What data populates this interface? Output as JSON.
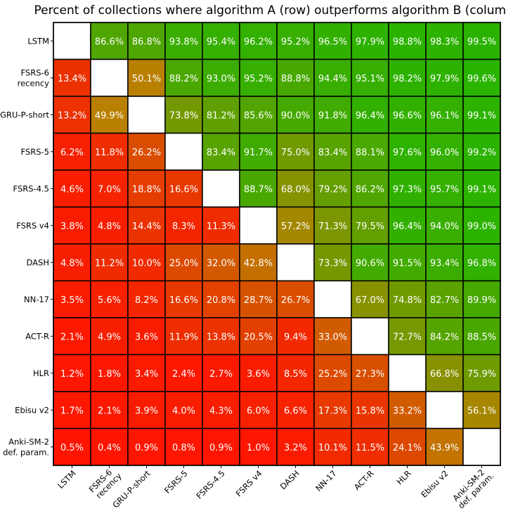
{
  "chart_data": {
    "type": "heatmap",
    "title": "Percent of collections where algorithm A (row) outperforms algorithm B (column)",
    "rows": [
      "LSTM",
      "FSRS-6\nrecency",
      "GRU-P-short",
      "FSRS-5",
      "FSRS-4.5",
      "FSRS v4",
      "DASH",
      "NN-17",
      "ACT-R",
      "HLR",
      "Ebisu v2",
      "Anki-SM-2\ndef. param."
    ],
    "columns": [
      "LSTM",
      "FSRS-6\nrecency",
      "GRU-P-short",
      "FSRS-5",
      "FSRS-4.5",
      "FSRS v4",
      "DASH",
      "NN-17",
      "ACT-R",
      "HLR",
      "Ebisu v2",
      "Anki-SM-2\ndef. param."
    ],
    "value_unit": "%",
    "values": [
      [
        null,
        86.6,
        86.8,
        93.8,
        95.4,
        96.2,
        95.2,
        96.5,
        97.9,
        98.8,
        98.3,
        99.5
      ],
      [
        13.4,
        null,
        50.1,
        88.2,
        93.0,
        95.2,
        88.8,
        94.4,
        95.1,
        98.2,
        97.9,
        99.6
      ],
      [
        13.2,
        49.9,
        null,
        73.8,
        81.2,
        85.6,
        90.0,
        91.8,
        96.4,
        96.6,
        96.1,
        99.1
      ],
      [
        6.2,
        11.8,
        26.2,
        null,
        83.4,
        91.7,
        75.0,
        83.4,
        88.1,
        97.6,
        96.0,
        99.2
      ],
      [
        4.6,
        7.0,
        18.8,
        16.6,
        null,
        88.7,
        68.0,
        79.2,
        86.2,
        97.3,
        95.7,
        99.1
      ],
      [
        3.8,
        4.8,
        14.4,
        8.3,
        11.3,
        null,
        57.2,
        71.3,
        79.5,
        96.4,
        94.0,
        99.0
      ],
      [
        4.8,
        11.2,
        10.0,
        25.0,
        32.0,
        42.8,
        null,
        73.3,
        90.6,
        91.5,
        93.4,
        96.8
      ],
      [
        3.5,
        5.6,
        8.2,
        16.6,
        20.8,
        28.7,
        26.7,
        null,
        67.0,
        74.8,
        82.7,
        89.9
      ],
      [
        2.1,
        4.9,
        3.6,
        11.9,
        13.8,
        20.5,
        9.4,
        33.0,
        null,
        72.7,
        84.2,
        88.5
      ],
      [
        1.2,
        1.8,
        3.4,
        2.4,
        2.7,
        3.6,
        8.5,
        25.2,
        27.3,
        null,
        66.8,
        75.9
      ],
      [
        1.7,
        2.1,
        3.9,
        4.0,
        4.3,
        6.0,
        6.6,
        17.3,
        15.8,
        33.2,
        null,
        56.1
      ],
      [
        0.5,
        0.4,
        0.9,
        0.8,
        0.9,
        1.0,
        3.2,
        10.1,
        11.5,
        24.1,
        43.9,
        null
      ]
    ],
    "value_range": [
      0,
      100
    ],
    "colormap": {
      "low": "#ff1400",
      "mid": "#b98000",
      "high": "#28b400"
    },
    "diagonal_color": "#ffffff",
    "grid": true,
    "legend": "none"
  }
}
